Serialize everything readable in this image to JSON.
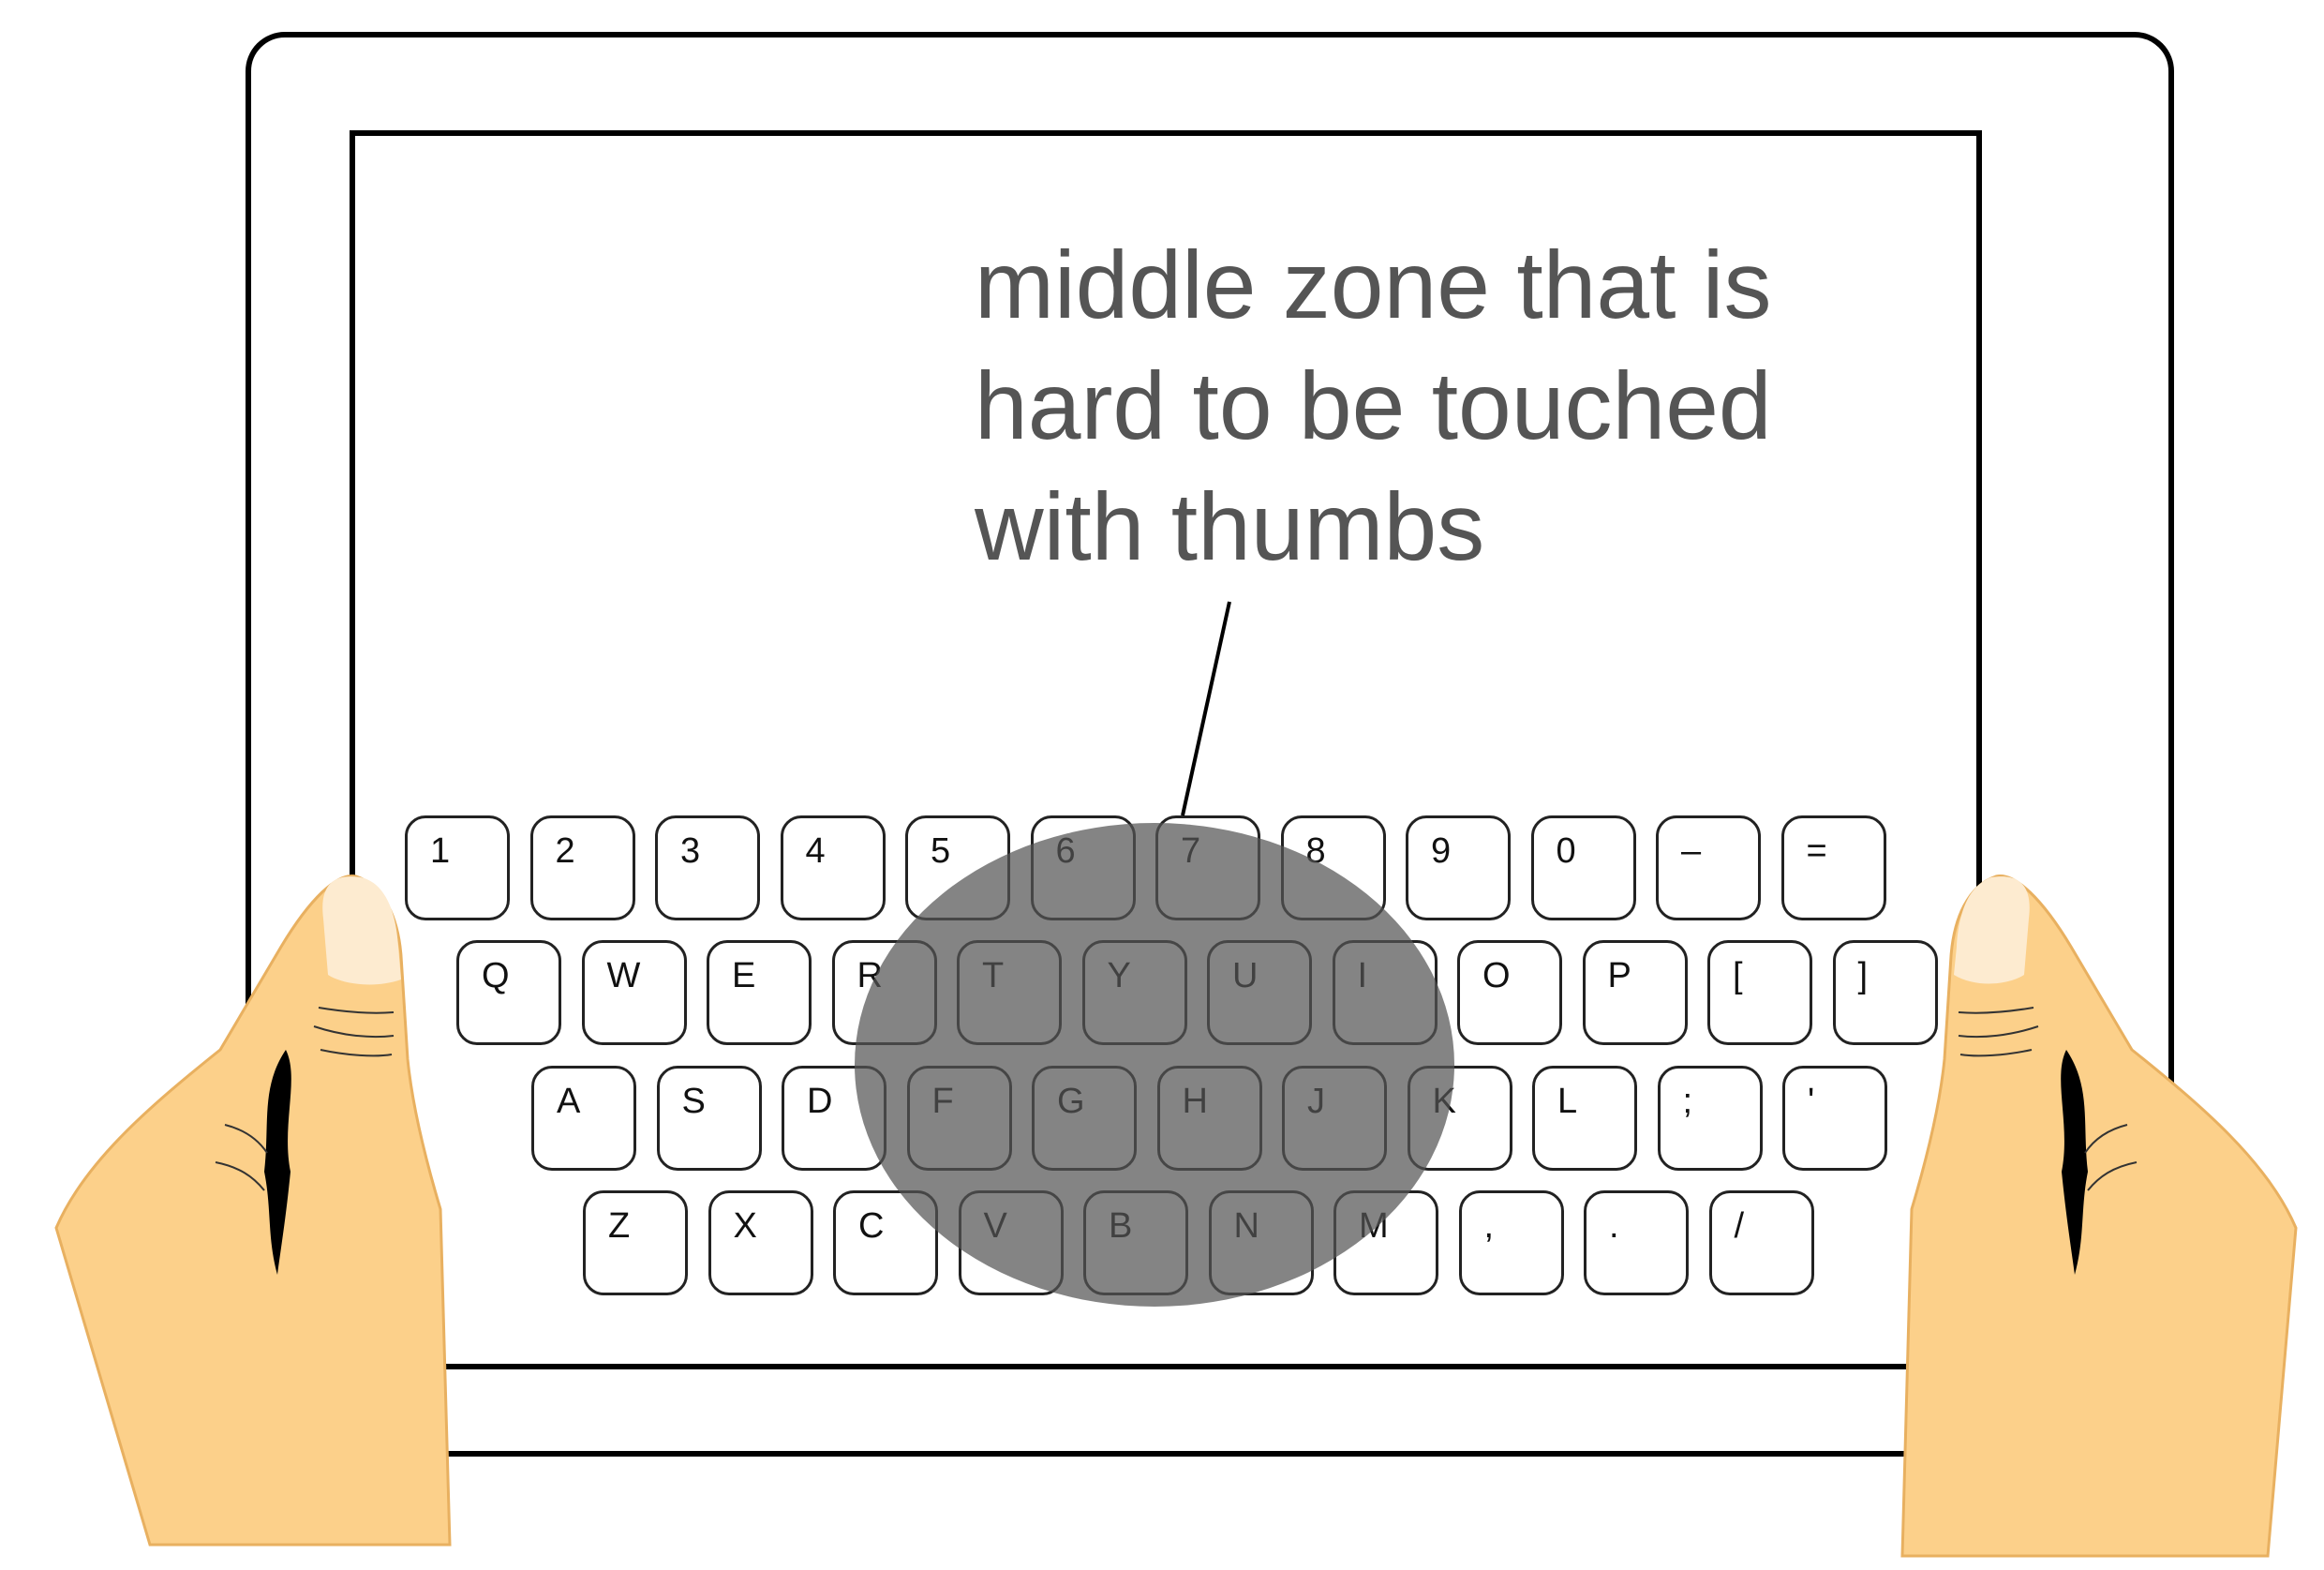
{
  "annotation": {
    "lines": [
      "middle zone that is",
      "hard to be touched",
      "with thumbs"
    ]
  },
  "keyboard": {
    "rows": [
      [
        "1",
        "2",
        "3",
        "4",
        "5",
        "6",
        "7",
        "8",
        "9",
        "0",
        "–",
        "="
      ],
      [
        "Q",
        "W",
        "E",
        "R",
        "T",
        "Y",
        "U",
        "I",
        "O",
        "P",
        "[",
        "]"
      ],
      [
        "A",
        "S",
        "D",
        "F",
        "G",
        "H",
        "J",
        "K",
        "L",
        ";",
        "'"
      ],
      [
        "Z",
        "X",
        "C",
        "V",
        "B",
        "N",
        "M",
        ",",
        ".",
        "/"
      ]
    ]
  },
  "colors": {
    "skin": "#fcd08a",
    "zone": "#555555",
    "text": "#555555",
    "outline": "#000000"
  }
}
